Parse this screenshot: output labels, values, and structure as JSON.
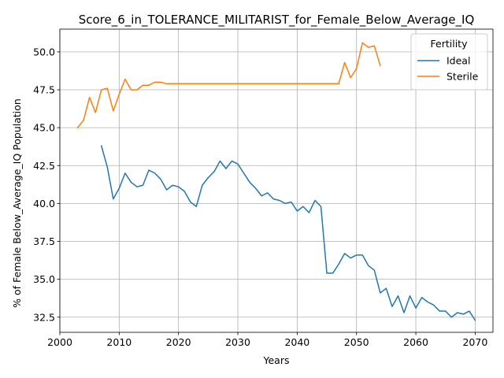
{
  "chart_data": {
    "type": "line",
    "title": "Score_6_in_TOLERANCE_MILITARIST_for_Female_Below_Average_IQ",
    "xlabel": "Years",
    "ylabel": "% of Female Below_Average_IQ Population",
    "xlim": [
      2000,
      2073
    ],
    "ylim": [
      31.5,
      51.5
    ],
    "xticks": [
      2000,
      2010,
      2020,
      2030,
      2040,
      2050,
      2060,
      2070
    ],
    "yticks": [
      32.5,
      35.0,
      37.5,
      40.0,
      42.5,
      45.0,
      47.5,
      50.0
    ],
    "xtick_labels": [
      "2000",
      "2010",
      "2020",
      "2030",
      "2040",
      "2050",
      "2060",
      "2070"
    ],
    "ytick_labels": [
      "32.5",
      "35.0",
      "37.5",
      "40.0",
      "42.5",
      "45.0",
      "47.5",
      "50.0"
    ],
    "grid": true,
    "legend": {
      "title": "Fertility",
      "placement": "top-right"
    },
    "series": [
      {
        "name": "Ideal",
        "color": "#1f77b4",
        "x": [
          2007,
          2008,
          2009,
          2010,
          2011,
          2012,
          2013,
          2014,
          2015,
          2016,
          2017,
          2018,
          2019,
          2020,
          2021,
          2022,
          2023,
          2024,
          2025,
          2026,
          2027,
          2028,
          2029,
          2030,
          2031,
          2032,
          2033,
          2034,
          2035,
          2036,
          2037,
          2038,
          2039,
          2040,
          2041,
          2042,
          2043,
          2044,
          2045,
          2046,
          2047,
          2048,
          2049,
          2050,
          2051,
          2052,
          2053,
          2054,
          2055,
          2056,
          2057,
          2058,
          2059,
          2060,
          2061,
          2062,
          2063,
          2064,
          2065,
          2066,
          2067,
          2068,
          2069,
          2070
        ],
        "y": [
          43.8,
          42.4,
          40.3,
          41.0,
          42.0,
          41.4,
          41.1,
          41.2,
          42.2,
          42.0,
          41.6,
          40.9,
          41.2,
          41.1,
          40.8,
          40.1,
          39.8,
          41.2,
          41.7,
          42.1,
          42.8,
          42.3,
          42.8,
          42.6,
          42.0,
          41.4,
          41.0,
          40.5,
          40.7,
          40.3,
          40.2,
          40.0,
          40.1,
          39.5,
          39.8,
          39.4,
          40.2,
          39.8,
          35.4,
          35.4,
          36.0,
          36.7,
          36.4,
          36.6,
          36.6,
          35.9,
          35.6,
          34.1,
          34.4,
          33.2,
          33.9,
          32.8,
          33.9,
          33.1,
          33.8,
          33.5,
          33.3,
          32.9,
          32.9,
          32.5,
          32.8,
          32.7,
          32.9,
          32.3
        ]
      },
      {
        "name": "Sterile",
        "color": "#ff7f0e",
        "x": [
          2003,
          2004,
          2005,
          2006,
          2007,
          2008,
          2009,
          2010,
          2011,
          2012,
          2013,
          2014,
          2015,
          2016,
          2017,
          2018,
          2019,
          2020,
          2021,
          2022,
          2023,
          2024,
          2025,
          2026,
          2027,
          2028,
          2029,
          2030,
          2031,
          2032,
          2033,
          2034,
          2035,
          2036,
          2037,
          2038,
          2039,
          2040,
          2041,
          2042,
          2043,
          2044,
          2045,
          2046,
          2047,
          2048,
          2049,
          2050,
          2051,
          2052,
          2053,
          2054
        ],
        "y": [
          45.0,
          45.5,
          47.0,
          46.0,
          47.5,
          47.6,
          46.1,
          47.2,
          48.2,
          47.5,
          47.5,
          47.8,
          47.8,
          48.0,
          48.0,
          47.9,
          47.9,
          47.9,
          47.9,
          47.9,
          47.9,
          47.9,
          47.9,
          47.9,
          47.9,
          47.9,
          47.9,
          47.9,
          47.9,
          47.9,
          47.9,
          47.9,
          47.9,
          47.9,
          47.9,
          47.9,
          47.9,
          47.9,
          47.9,
          47.9,
          47.9,
          47.9,
          47.9,
          47.9,
          47.9,
          49.3,
          48.3,
          48.9,
          50.6,
          50.3,
          50.4,
          49.1
        ]
      }
    ]
  }
}
